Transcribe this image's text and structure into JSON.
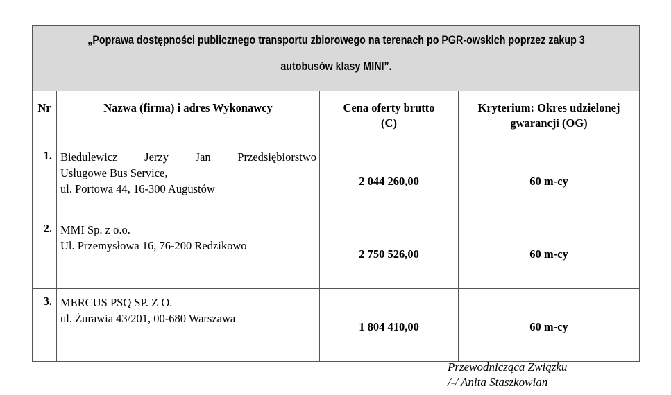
{
  "document": {
    "title_line1": "„Poprawa dostępności publicznego transportu zbiorowego na terenach po PGR-owskich poprzez zakup 3",
    "title_line2": "autobusów klasy MINI”.",
    "columns": {
      "nr": "Nr",
      "name": "Nazwa (firma) i adres Wykonawcy",
      "price_line1": "Cena oferty brutto",
      "price_line2": "(C)",
      "criterion_line1": "Kryterium: Okres udzielonej",
      "criterion_line2": "gwarancji (OG)"
    },
    "rows": [
      {
        "nr": "1.",
        "name_lines": [
          "Biedulewicz Jerzy Jan Przedsiębiorstwo",
          "Usługowe Bus Service,",
          "ul. Portowa 44, 16-300 Augustów"
        ],
        "price": "2 044 260,00",
        "warranty": "60 m-cy"
      },
      {
        "nr": "2.",
        "name_lines": [
          "MMI Sp. z o.o.",
          "Ul. Przemysłowa 16, 76-200 Redzikowo"
        ],
        "price": "2 750 526,00",
        "warranty": "60 m-cy"
      },
      {
        "nr": "3.",
        "name_lines": [
          "MERCUS PSQ SP. Z O.",
          "ul. Żurawia 43/201, 00-680 Warszawa"
        ],
        "price": "1 804 410,00",
        "warranty": "60 m-cy"
      }
    ],
    "signature": {
      "role": "Przewodnicząca Związku",
      "name": "/-/ Anita Staszkowian"
    }
  }
}
